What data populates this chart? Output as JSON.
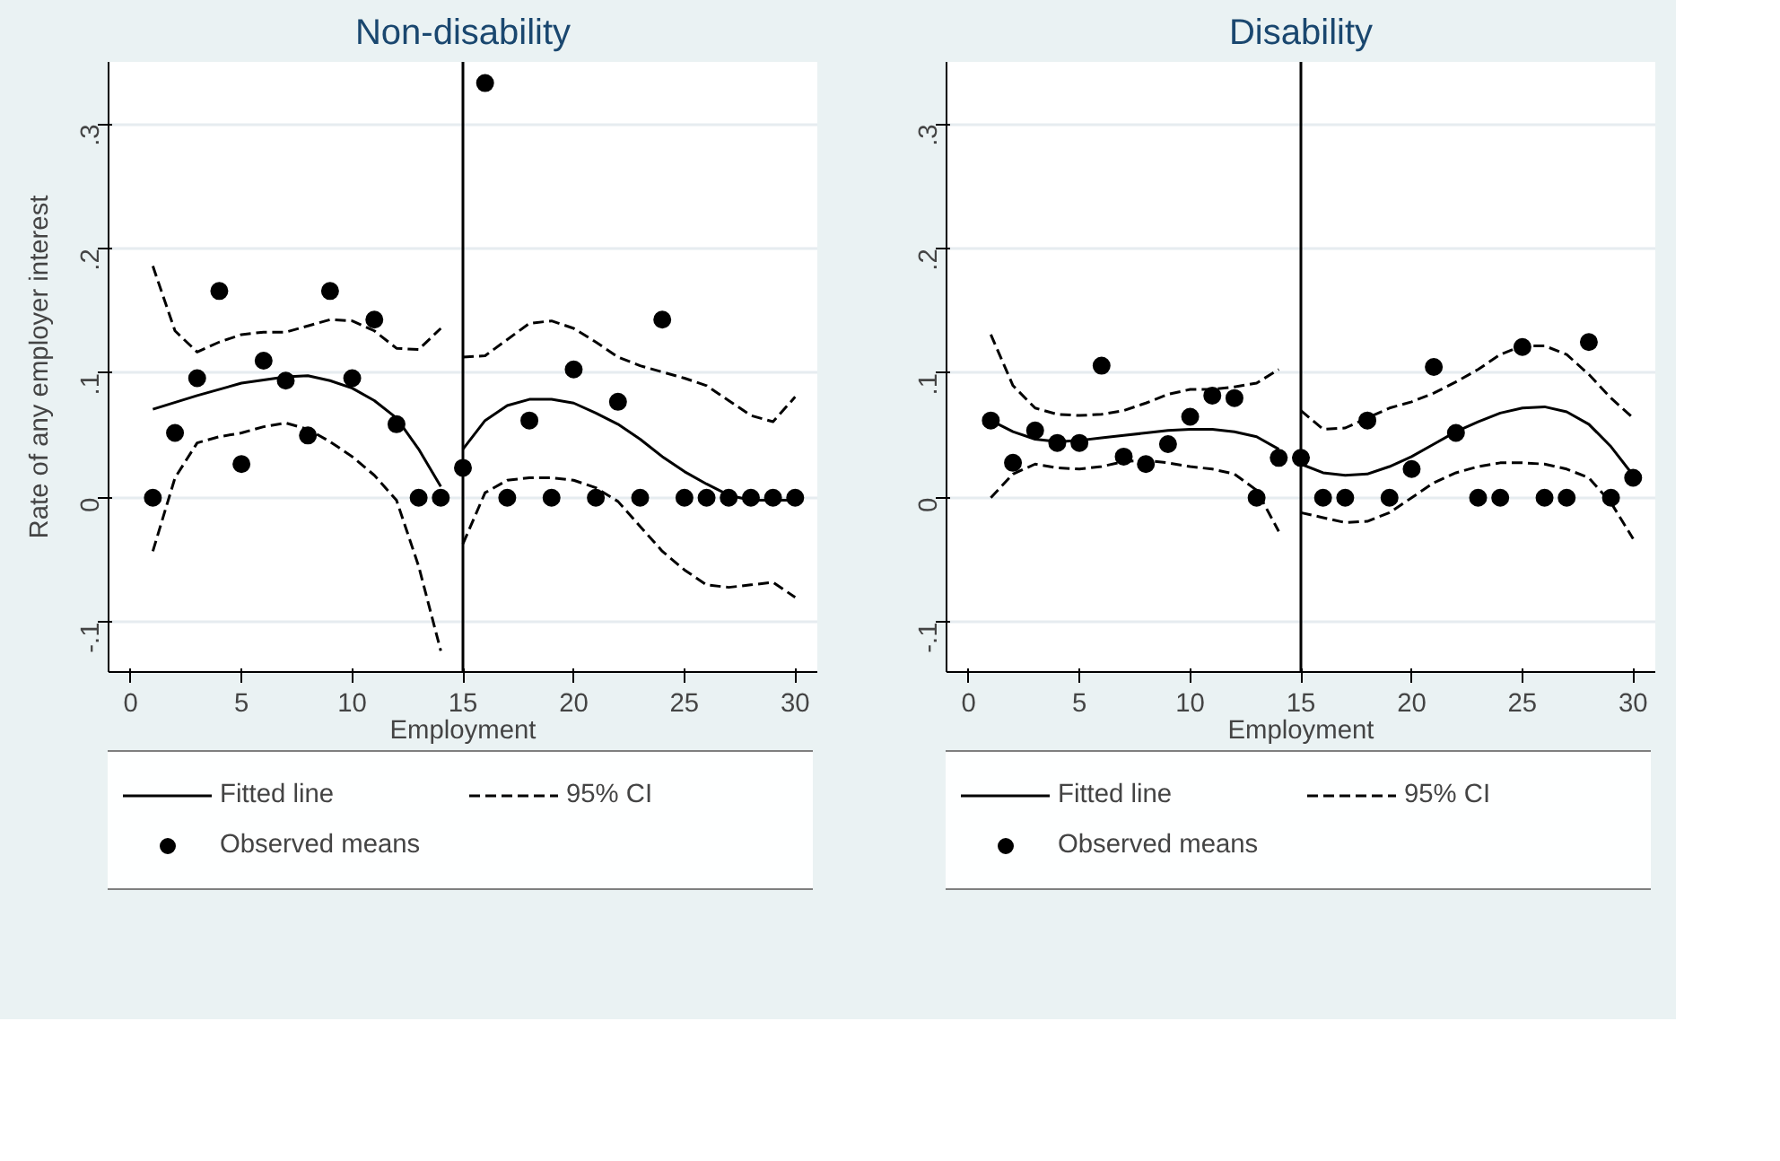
{
  "chart_data": [
    {
      "type": "line",
      "title": "Non-disability",
      "xlabel": "Employment",
      "ylabel": "Rate of any employer interest",
      "xlim": [
        -1,
        31
      ],
      "ylim": [
        -0.14,
        0.35
      ],
      "xticks": [
        0,
        5,
        10,
        15,
        20,
        25,
        30
      ],
      "yticks": [
        {
          "value": -0.1,
          "label": "-.1"
        },
        0,
        {
          "value": 0.1,
          "label": ".1"
        },
        {
          "value": 0.2,
          "label": ".2"
        },
        {
          "value": 0.3,
          "label": ".3"
        }
      ],
      "grid": "y",
      "legend": "bottom",
      "ref_lines": [
        {
          "axis": "x",
          "value": 15,
          "color": "#000000"
        }
      ],
      "series": [
        {
          "name": "Fitted line",
          "type": "line",
          "line_style": "solid",
          "color": "#000000",
          "x": [
            1,
            3,
            5,
            7,
            8,
            9,
            10,
            11,
            12,
            13,
            14
          ],
          "values": [
            0.071,
            0.082,
            0.092,
            0.097,
            0.098,
            0.094,
            0.088,
            0.078,
            0.064,
            0.039,
            0.009
          ]
        },
        {
          "name": "95% CI",
          "type": "line",
          "line_style": "dashed",
          "color": "#000000",
          "x": [
            1,
            2,
            3,
            4,
            5,
            6,
            7,
            8,
            9,
            10,
            11,
            12,
            13,
            14
          ],
          "values": [
            0.186,
            0.134,
            0.117,
            0.125,
            0.131,
            0.133,
            0.133,
            0.138,
            0.143,
            0.142,
            0.134,
            0.12,
            0.119,
            0.136
          ]
        },
        {
          "name": "95% CI",
          "type": "line",
          "line_style": "dashed",
          "color": "#000000",
          "x": [
            1,
            2,
            3,
            4,
            5,
            6,
            7,
            8,
            9,
            10,
            11,
            12,
            13,
            14
          ],
          "values": [
            -0.043,
            0.016,
            0.044,
            0.049,
            0.052,
            0.057,
            0.06,
            0.055,
            0.045,
            0.033,
            0.018,
            -0.002,
            -0.055,
            -0.123
          ]
        },
        {
          "type": "line",
          "line_style": "solid",
          "color": "#000000",
          "x": [
            15,
            16,
            17,
            18,
            19,
            20,
            21,
            22,
            23,
            24,
            25,
            26,
            27,
            28,
            29,
            30
          ],
          "values": [
            0.039,
            0.062,
            0.074,
            0.079,
            0.079,
            0.076,
            0.068,
            0.059,
            0.047,
            0.033,
            0.021,
            0.011,
            0.002,
            -0.002,
            -0.002,
            -0.002
          ]
        },
        {
          "type": "line",
          "line_style": "dashed",
          "color": "#000000",
          "x": [
            15,
            16,
            17,
            18,
            19,
            20,
            21,
            22,
            23,
            24,
            25,
            26,
            27,
            28,
            29,
            30
          ],
          "values": [
            0.113,
            0.114,
            0.127,
            0.14,
            0.142,
            0.136,
            0.125,
            0.113,
            0.106,
            0.101,
            0.096,
            0.09,
            0.078,
            0.066,
            0.061,
            0.081
          ]
        },
        {
          "type": "line",
          "line_style": "dashed",
          "color": "#000000",
          "x": [
            15,
            16,
            17,
            18,
            19,
            20,
            21,
            22,
            23,
            24,
            25,
            26,
            27,
            28,
            29,
            30
          ],
          "values": [
            -0.037,
            0.004,
            0.014,
            0.016,
            0.016,
            0.014,
            0.008,
            -0.003,
            -0.023,
            -0.043,
            -0.058,
            -0.07,
            -0.072,
            -0.07,
            -0.068,
            -0.08
          ]
        },
        {
          "name": "Observed means",
          "type": "scatter",
          "marker": "circle",
          "color": "#000000",
          "x": [
            1,
            2,
            3,
            4,
            5,
            6,
            7,
            8,
            9,
            10,
            11,
            12,
            13,
            14,
            15,
            16,
            17,
            18,
            19,
            20,
            21,
            22,
            23,
            24,
            25,
            26,
            27,
            28,
            29,
            30
          ],
          "values": [
            0,
            0.052,
            0.096,
            0.166,
            0.027,
            0.11,
            0.094,
            0.05,
            0.166,
            0.096,
            0.143,
            0.059,
            0,
            0,
            0.024,
            0.333,
            0,
            0.062,
            0,
            0.103,
            0,
            0.077,
            0,
            0.143,
            0,
            0,
            0,
            0,
            0,
            0
          ]
        }
      ]
    },
    {
      "type": "line",
      "title": "Disability",
      "xlabel": "Employment",
      "xlim": [
        -1,
        31
      ],
      "ylim": [
        -0.14,
        0.35
      ],
      "xticks": [
        0,
        5,
        10,
        15,
        20,
        25,
        30
      ],
      "yticks": [
        {
          "value": -0.1,
          "label": "-.1"
        },
        0,
        {
          "value": 0.1,
          "label": ".1"
        },
        {
          "value": 0.2,
          "label": ".2"
        },
        {
          "value": 0.3,
          "label": ".3"
        }
      ],
      "grid": "y",
      "legend": "bottom",
      "ref_lines": [
        {
          "axis": "x",
          "value": 15,
          "color": "#000000"
        }
      ],
      "series": [
        {
          "name": "Fitted line",
          "type": "line",
          "line_style": "solid",
          "color": "#000000",
          "x": [
            1,
            2,
            3,
            4,
            5,
            6,
            7,
            8,
            9,
            10,
            11,
            12,
            13,
            14
          ],
          "values": [
            0.062,
            0.053,
            0.047,
            0.045,
            0.046,
            0.048,
            0.05,
            0.052,
            0.054,
            0.055,
            0.055,
            0.053,
            0.049,
            0.039
          ]
        },
        {
          "name": "95% CI",
          "type": "line",
          "line_style": "dashed",
          "color": "#000000",
          "x": [
            1,
            2,
            3,
            4,
            5,
            6,
            7,
            8,
            9,
            10,
            11,
            12,
            13,
            14
          ],
          "values": [
            0.131,
            0.09,
            0.072,
            0.067,
            0.066,
            0.067,
            0.07,
            0.076,
            0.083,
            0.087,
            0.087,
            0.089,
            0.092,
            0.103
          ]
        },
        {
          "name": "95% CI",
          "type": "line",
          "line_style": "dashed",
          "color": "#000000",
          "x": [
            1,
            2,
            3,
            4,
            5,
            6,
            7,
            8,
            9,
            10,
            11,
            12,
            13,
            14
          ],
          "values": [
            0.0,
            0.019,
            0.027,
            0.024,
            0.023,
            0.025,
            0.029,
            0.03,
            0.028,
            0.025,
            0.023,
            0.019,
            0.006,
            -0.027
          ]
        },
        {
          "type": "line",
          "line_style": "solid",
          "color": "#000000",
          "x": [
            15,
            16,
            17,
            18,
            19,
            20,
            21,
            22,
            23,
            24,
            25,
            26,
            27,
            28,
            29,
            30
          ],
          "values": [
            0.027,
            0.02,
            0.018,
            0.019,
            0.025,
            0.033,
            0.043,
            0.053,
            0.061,
            0.068,
            0.072,
            0.073,
            0.069,
            0.059,
            0.041,
            0.018
          ]
        },
        {
          "type": "line",
          "line_style": "dashed",
          "color": "#000000",
          "x": [
            15,
            16,
            17,
            18,
            19,
            20,
            21,
            22,
            23,
            24,
            25,
            26,
            27,
            28,
            29,
            30
          ],
          "values": [
            0.07,
            0.055,
            0.056,
            0.064,
            0.072,
            0.077,
            0.084,
            0.093,
            0.103,
            0.115,
            0.122,
            0.122,
            0.115,
            0.099,
            0.08,
            0.064
          ]
        },
        {
          "type": "line",
          "line_style": "dashed",
          "color": "#000000",
          "x": [
            15,
            16,
            17,
            18,
            19,
            20,
            21,
            22,
            23,
            24,
            25,
            26,
            27,
            28,
            29,
            30
          ],
          "values": [
            -0.012,
            -0.016,
            -0.02,
            -0.019,
            -0.012,
            0.0,
            0.012,
            0.02,
            0.025,
            0.028,
            0.028,
            0.027,
            0.023,
            0.016,
            -0.004,
            -0.033
          ]
        },
        {
          "name": "Observed means",
          "type": "scatter",
          "marker": "circle",
          "color": "#000000",
          "x": [
            1,
            2,
            3,
            4,
            5,
            6,
            7,
            8,
            9,
            10,
            11,
            12,
            13,
            14,
            15,
            16,
            17,
            18,
            19,
            20,
            21,
            22,
            23,
            24,
            25,
            26,
            27,
            28,
            29,
            30
          ],
          "values": [
            0.062,
            0.028,
            0.054,
            0.044,
            0.044,
            0.106,
            0.033,
            0.027,
            0.043,
            0.065,
            0.082,
            0.08,
            0,
            0.032,
            0.032,
            0,
            0,
            0.062,
            0,
            0.023,
            0.105,
            0.052,
            0,
            0,
            0.121,
            0,
            0,
            0.125,
            0,
            0.016
          ]
        }
      ]
    }
  ]
}
